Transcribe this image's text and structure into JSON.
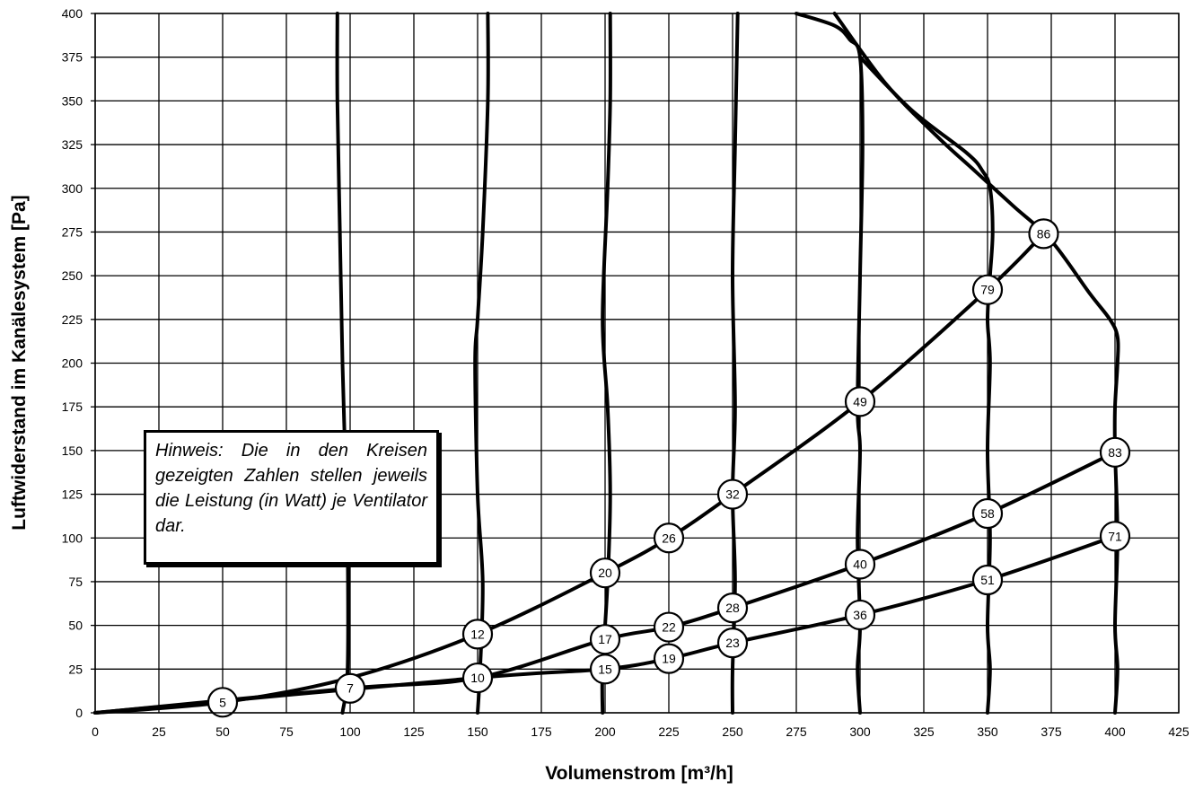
{
  "chart_data": {
    "type": "line",
    "xlabel": "Volumenstrom [m³/h]",
    "ylabel": "Luftwiderstand im Kanälesystem [Pa]",
    "xlim": [
      0,
      425
    ],
    "ylim": [
      0,
      400
    ],
    "x_ticks": [
      "0",
      "25",
      "50",
      "75",
      "100",
      "125",
      "150",
      "175",
      "200",
      "225",
      "250",
      "275",
      "300",
      "325",
      "350",
      "375",
      "400",
      "425"
    ],
    "y_ticks": [
      "0",
      "25",
      "50",
      "75",
      "100",
      "125",
      "150",
      "175",
      "200",
      "225",
      "250",
      "275",
      "300",
      "325",
      "350",
      "375",
      "400"
    ],
    "grid": true,
    "note": "Hinweis: Die in den Kreisen gezeigten Zahlen stellen jeweils die Leistung (in Watt) je Ventilator dar.",
    "system_curves": [
      {
        "x": [
          0,
          50,
          100,
          150,
          200,
          225,
          250,
          300,
          350,
          372
        ],
        "y": [
          0,
          6,
          20,
          45,
          80,
          100,
          125,
          178,
          242,
          274
        ]
      },
      {
        "x": [
          0,
          100,
          150,
          200,
          225,
          250,
          300,
          350,
          400
        ],
        "y": [
          0,
          14,
          20,
          42,
          49,
          60,
          85,
          114,
          149
        ]
      },
      {
        "x": [
          0,
          150,
          200,
          225,
          250,
          300,
          350,
          400
        ],
        "y": [
          0,
          20,
          25,
          31,
          40,
          56,
          76,
          101
        ]
      }
    ],
    "fan_curves": [
      {
        "x": [
          97,
          99,
          99,
          98,
          97,
          96,
          95,
          95
        ],
        "y": [
          0,
          25,
          100,
          150,
          200,
          275,
          350,
          400
        ]
      },
      {
        "x": [
          150,
          151,
          152,
          150,
          149,
          150,
          152,
          154,
          154
        ],
        "y": [
          0,
          25,
          75,
          125,
          200,
          225,
          275,
          350,
          400
        ]
      },
      {
        "x": [
          199,
          199,
          201,
          202,
          201,
          199,
          201,
          202,
          202
        ],
        "y": [
          0,
          25,
          75,
          125,
          175,
          225,
          300,
          350,
          400
        ]
      },
      {
        "x": [
          250,
          250,
          251,
          250,
          251,
          250,
          251,
          252
        ],
        "y": [
          0,
          25,
          75,
          125,
          175,
          250,
          325,
          400
        ]
      },
      {
        "x": [
          300,
          299,
          300,
          299,
          300,
          299,
          300,
          301,
          300,
          296,
          290,
          275
        ],
        "y": [
          0,
          25,
          50,
          100,
          150,
          175,
          250,
          325,
          375,
          385,
          393,
          400
        ]
      },
      {
        "x": [
          350,
          351,
          350,
          351,
          350,
          351,
          350,
          351,
          352,
          351,
          348,
          342,
          320,
          300
        ],
        "y": [
          0,
          25,
          50,
          100,
          150,
          200,
          225,
          250,
          275,
          300,
          310,
          320,
          345,
          375
        ]
      },
      {
        "x": [
          400,
          401,
          400,
          401,
          400,
          400,
          401,
          401,
          398,
          390,
          375,
          360,
          345,
          330,
          310,
          290
        ],
        "y": [
          0,
          25,
          50,
          100,
          150,
          175,
          200,
          215,
          225,
          240,
          270,
          290,
          310,
          330,
          360,
          400
        ]
      }
    ],
    "points": [
      {
        "x": 50,
        "y": 6,
        "label": "5"
      },
      {
        "x": 100,
        "y": 14,
        "label": "7"
      },
      {
        "x": 150,
        "y": 45,
        "label": "12"
      },
      {
        "x": 150,
        "y": 20,
        "label": "10"
      },
      {
        "x": 200,
        "y": 80,
        "label": "20"
      },
      {
        "x": 200,
        "y": 42,
        "label": "17"
      },
      {
        "x": 200,
        "y": 25,
        "label": "15"
      },
      {
        "x": 225,
        "y": 100,
        "label": "26"
      },
      {
        "x": 225,
        "y": 49,
        "label": "22"
      },
      {
        "x": 225,
        "y": 31,
        "label": "19"
      },
      {
        "x": 250,
        "y": 125,
        "label": "32"
      },
      {
        "x": 250,
        "y": 60,
        "label": "28"
      },
      {
        "x": 250,
        "y": 40,
        "label": "23"
      },
      {
        "x": 300,
        "y": 178,
        "label": "49"
      },
      {
        "x": 300,
        "y": 85,
        "label": "40"
      },
      {
        "x": 300,
        "y": 56,
        "label": "36"
      },
      {
        "x": 350,
        "y": 242,
        "label": "79"
      },
      {
        "x": 350,
        "y": 114,
        "label": "58"
      },
      {
        "x": 350,
        "y": 76,
        "label": "51"
      },
      {
        "x": 372,
        "y": 274,
        "label": "86"
      },
      {
        "x": 400,
        "y": 149,
        "label": "83"
      },
      {
        "x": 400,
        "y": 101,
        "label": "71"
      }
    ]
  }
}
